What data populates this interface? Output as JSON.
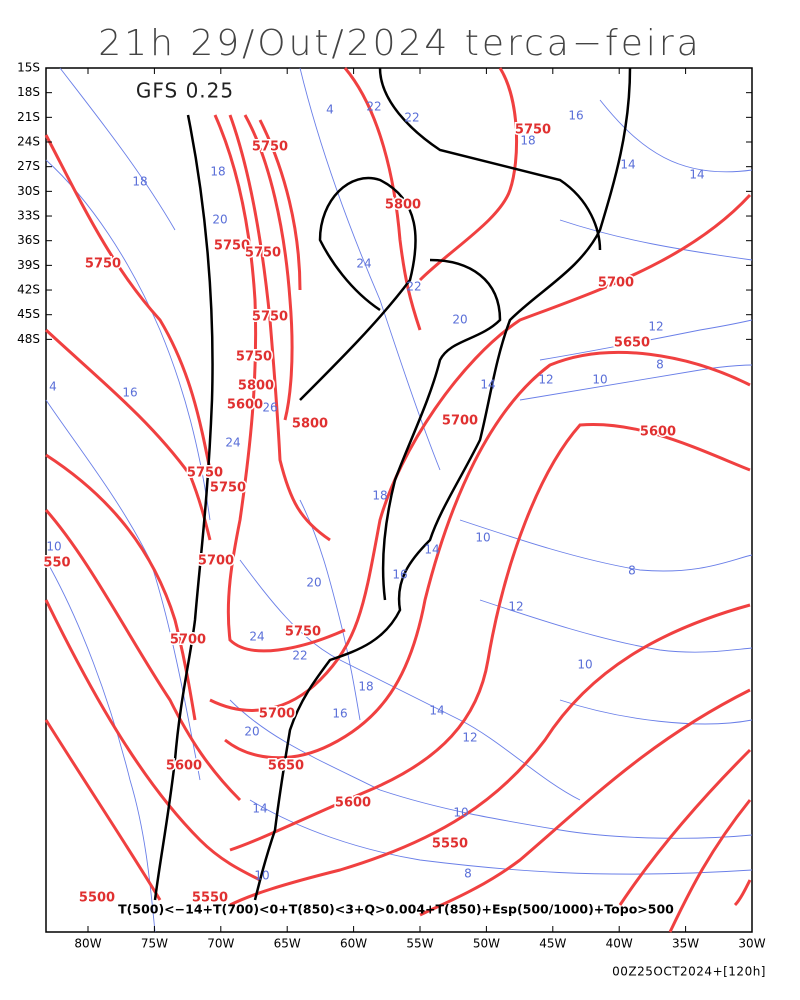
{
  "header": {
    "title": "21h 29/Out/2024 terca−feira",
    "model": "GFS 0.25"
  },
  "axes": {
    "lat_labels": [
      "15S",
      "18S",
      "21S",
      "24S",
      "27S",
      "30S",
      "33S",
      "36S",
      "39S",
      "42S",
      "45S",
      "48S"
    ],
    "lon_labels": [
      "80W",
      "75W",
      "70W",
      "65W",
      "60W",
      "55W",
      "50W",
      "45W",
      "40W",
      "35W",
      "30W"
    ]
  },
  "contour_labels": {
    "height": [
      "5750",
      "5750",
      "5800",
      "5750",
      "5750",
      "5750",
      "5700",
      "5750",
      "5750",
      "5650",
      "5800",
      "5600",
      "5800",
      "5700",
      "5600",
      "5750",
      "5750",
      "5700",
      "550",
      "5700",
      "5750",
      "5700",
      "5600",
      "5650",
      "5600",
      "5550",
      "5500",
      "5550"
    ],
    "thickness": [
      "4",
      "22",
      "22",
      "16",
      "18",
      "18",
      "18",
      "14",
      "14",
      "20",
      "24",
      "22",
      "20",
      "12",
      "16",
      "4",
      "12",
      "10",
      "8",
      "14",
      "26",
      "24",
      "18",
      "10",
      "8",
      "10",
      "14",
      "16",
      "12",
      "20",
      "24",
      "22",
      "18",
      "16",
      "14",
      "12",
      "10",
      "20",
      "14",
      "10",
      "8",
      "10"
    ]
  },
  "caption": "T(500)<−14+T(700)<0+T(850)<3+Q>0.004+T(850)+Esp(500/1000)+Topo>500",
  "footer": "00Z25OCT2024+[120h]"
}
